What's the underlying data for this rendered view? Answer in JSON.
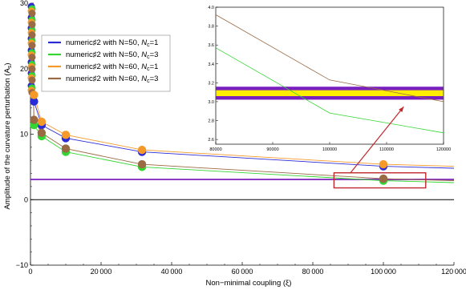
{
  "chart_data": {
    "type": "line",
    "xlabel": "Non−minimal coupling (ξ)",
    "ylabel": "Amplitude of the curvature perturbation (A_s)",
    "xlim": [
      0,
      120000
    ],
    "ylim": [
      -10,
      30
    ],
    "x_ticks": [
      "0",
      "20000",
      "40000",
      "60000",
      "80000",
      "100000",
      "120000"
    ],
    "y_ticks": [
      "-10",
      "0",
      "10",
      "20",
      "30"
    ],
    "legend_placement": "upper-left",
    "series": [
      {
        "name": "numeric♯2 with N=50, N_c=1",
        "label_main": "numeric♯2 with N=50, ",
        "label_sym": "N",
        "label_sub": "c",
        "label_tail": "=1",
        "color": "#2b2bd6",
        "points": [
          [
            1000,
            15.0
          ],
          [
            3160,
            11.4
          ],
          [
            10000,
            9.4
          ],
          [
            31600,
            7.3
          ],
          [
            100000,
            5.1
          ],
          [
            120000,
            4.8
          ]
        ]
      },
      {
        "name": "numeric♯2 with N=50, N_c=3",
        "label_main": "numeric♯2 with N=50, ",
        "label_sym": "N",
        "label_sub": "c",
        "label_tail": "=3",
        "color": "#33d633",
        "points": [
          [
            1000,
            11.4
          ],
          [
            3160,
            9.7
          ],
          [
            10000,
            7.3
          ],
          [
            31600,
            5.0
          ],
          [
            100000,
            2.9
          ],
          [
            120000,
            2.6
          ]
        ]
      },
      {
        "name": "numeric♯2 with N=60, N_c=1",
        "label_main": "numeric♯2 with N=60, ",
        "label_sym": "N",
        "label_sub": "c",
        "label_tail": "=1",
        "color": "#f59a2a",
        "points": [
          [
            1000,
            16.0
          ],
          [
            3160,
            11.9
          ],
          [
            10000,
            9.9
          ],
          [
            31600,
            7.6
          ],
          [
            100000,
            5.4
          ],
          [
            120000,
            5.1
          ]
        ]
      },
      {
        "name": "numeric♯2 with N=60, N_c=3",
        "label_main": "numeric♯2 with N=60, ",
        "label_sym": "N",
        "label_sub": "c",
        "label_tail": "=3",
        "color": "#9a6a45",
        "points": [
          [
            1000,
            12.2
          ],
          [
            3160,
            10.2
          ],
          [
            10000,
            7.8
          ],
          [
            31600,
            5.4
          ],
          [
            100000,
            3.2
          ],
          [
            120000,
            2.9
          ]
        ]
      }
    ],
    "reference_band": {
      "y_low": 3.04,
      "y_high": 3.14,
      "line_color": "#7a1fbf",
      "fill_color": "#ffee00"
    },
    "highlight_box": {
      "x_range": [
        86000,
        112000
      ],
      "y_range": [
        1.8,
        4.1
      ],
      "color": "#c0282d"
    },
    "inset": {
      "xlim": [
        80000,
        120000
      ],
      "ylim": [
        2.55,
        4.0
      ],
      "x_ticks": [
        "80000",
        "90000",
        "100000",
        "110000",
        "120000"
      ],
      "y_ticks": [
        "2.6",
        "2.8",
        "3.0",
        "3.2",
        "3.4",
        "3.6",
        "3.8",
        "4.0"
      ],
      "lines": [
        {
          "series": "numeric♯2 with N=60, N_c=3",
          "color": "#9a6a45",
          "points": [
            [
              80000,
              3.92
            ],
            [
              100000,
              3.23
            ],
            [
              120000,
              3.0
            ]
          ]
        },
        {
          "series": "numeric♯2 with N=50, N_c=3",
          "color": "#33d633",
          "points": [
            [
              80000,
              3.57
            ],
            [
              100000,
              2.88
            ],
            [
              120000,
              2.67
            ]
          ]
        }
      ]
    }
  }
}
